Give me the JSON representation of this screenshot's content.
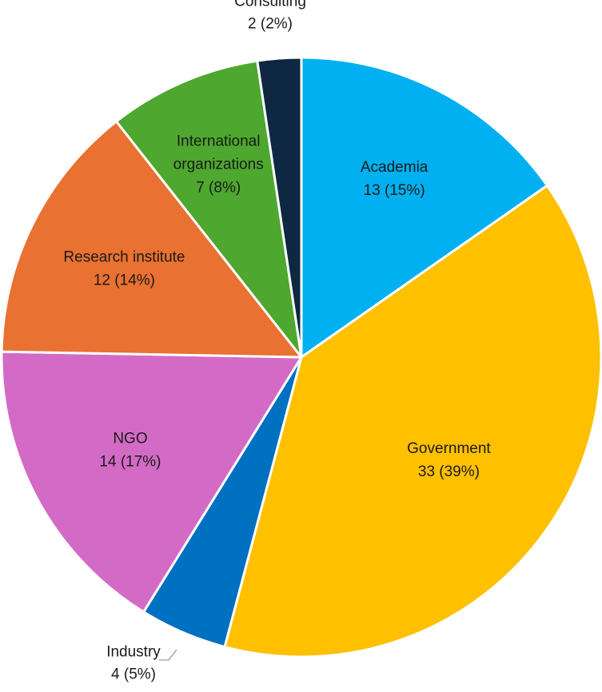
{
  "chart_data": {
    "type": "pie",
    "start_angle_deg": 0,
    "direction": "clockwise",
    "slices": [
      {
        "category": "Academia",
        "value": 13,
        "percent_label": "13 (15%)",
        "color": "#00B0F0"
      },
      {
        "category": "Government",
        "value": 33,
        "percent_label": "33 (39%)",
        "color": "#FFC000"
      },
      {
        "category": "Industry",
        "value": 4,
        "percent_label": "4 (5%)",
        "color": "#0070C0"
      },
      {
        "category": "NGO",
        "value": 14,
        "percent_label": "14 (17%)",
        "color": "#D36BC6"
      },
      {
        "category": "Research institute",
        "value": 12,
        "percent_label": "12 (14%)",
        "color": "#E97132"
      },
      {
        "category": "International organizations",
        "value": 7,
        "percent_label": "7 (8%)",
        "color": "#4EA72E"
      },
      {
        "category": "Consulting",
        "value": 2,
        "percent_label": "2 (2%)",
        "color": "#0E2841"
      }
    ]
  }
}
